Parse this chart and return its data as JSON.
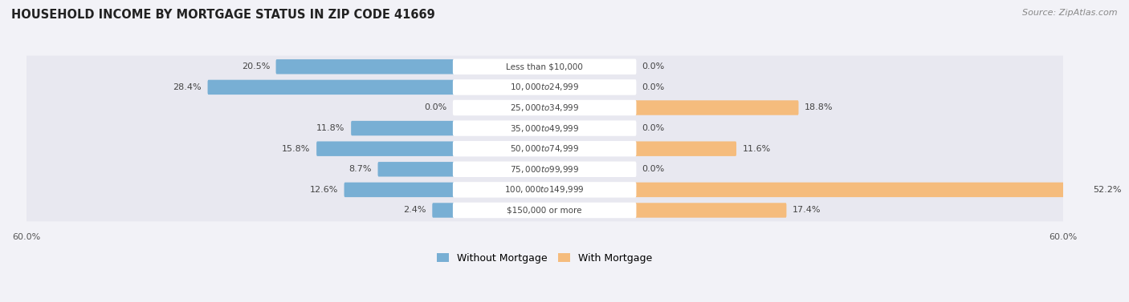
{
  "title": "HOUSEHOLD INCOME BY MORTGAGE STATUS IN ZIP CODE 41669",
  "source": "Source: ZipAtlas.com",
  "categories": [
    "Less than $10,000",
    "$10,000 to $24,999",
    "$25,000 to $34,999",
    "$35,000 to $49,999",
    "$50,000 to $74,999",
    "$75,000 to $99,999",
    "$100,000 to $149,999",
    "$150,000 or more"
  ],
  "without_mortgage": [
    20.5,
    28.4,
    0.0,
    11.8,
    15.8,
    8.7,
    12.6,
    2.4
  ],
  "with_mortgage": [
    0.0,
    0.0,
    18.8,
    0.0,
    11.6,
    0.0,
    52.2,
    17.4
  ],
  "without_mortgage_color": "#78afd4",
  "with_mortgage_color": "#f5bc7d",
  "axis_limit": 60.0,
  "background_color": "#f2f2f7",
  "row_bg_color": "#e8e8f0",
  "label_badge_color": "#ffffff",
  "title_fontsize": 10.5,
  "source_fontsize": 8,
  "bar_label_fontsize": 8,
  "cat_label_fontsize": 7.5,
  "legend_fontsize": 9,
  "axis_label_fontsize": 8
}
